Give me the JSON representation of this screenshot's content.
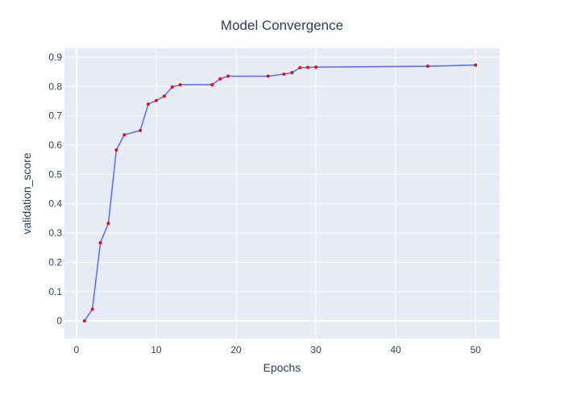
{
  "chart_data": {
    "type": "line",
    "title": "Model Convergence",
    "xlabel": "Epochs",
    "ylabel": "validation_score",
    "xlim": [
      -1.5,
      53
    ],
    "ylim": [
      -0.06,
      0.93
    ],
    "x_ticks": [
      0,
      10,
      20,
      30,
      40,
      50
    ],
    "y_ticks": [
      0,
      0.1,
      0.2,
      0.3,
      0.4,
      0.5,
      0.6,
      0.7,
      0.8,
      0.9
    ],
    "grid": true,
    "colors": {
      "plot_background": "#e5ecf6",
      "grid": "#ffffff",
      "line": "#636efa",
      "marker": "#ff0000",
      "text": "#2a3f5f"
    },
    "series": [
      {
        "x": [
          1,
          2,
          3,
          4,
          5,
          6,
          8,
          9,
          10,
          11,
          12,
          13,
          17,
          18,
          19,
          24,
          26,
          27,
          28,
          29,
          30,
          44,
          50
        ],
        "y": [
          0.0,
          0.04,
          0.267,
          0.333,
          0.583,
          0.635,
          0.65,
          0.74,
          0.752,
          0.767,
          0.798,
          0.806,
          0.806,
          0.826,
          0.835,
          0.835,
          0.842,
          0.847,
          0.864,
          0.865,
          0.866,
          0.869,
          0.873
        ]
      }
    ]
  }
}
